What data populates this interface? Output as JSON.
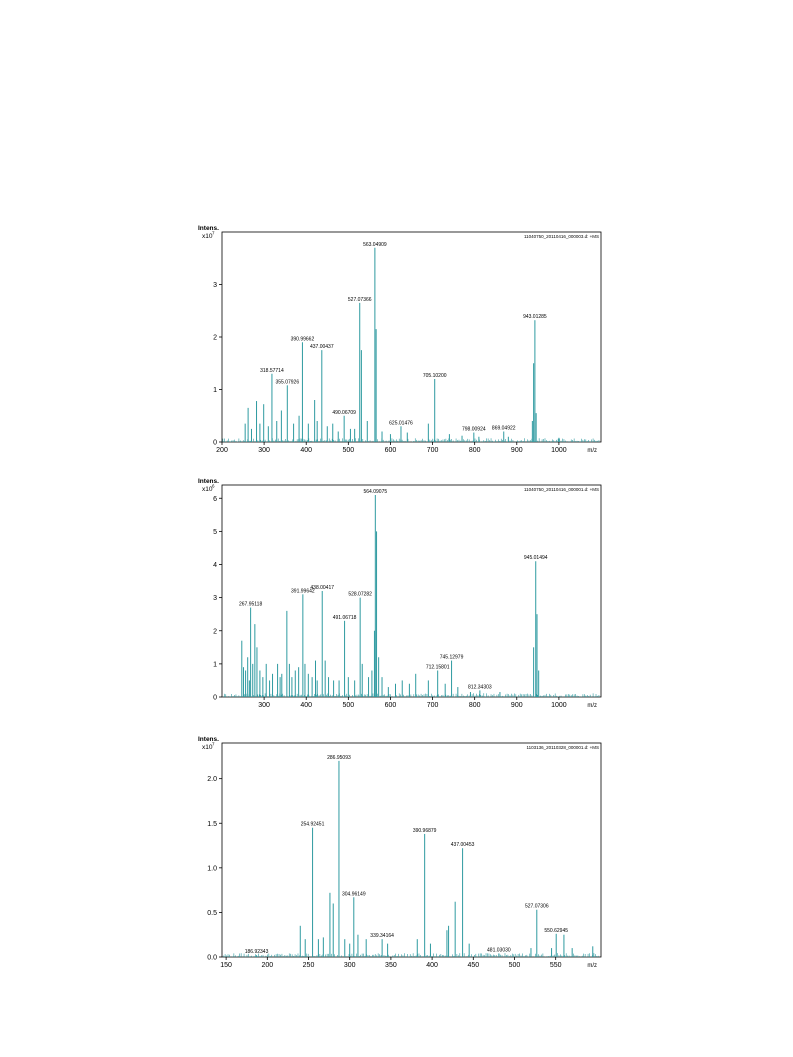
{
  "colors": {
    "trace": "#2e9aa0",
    "axis": "#000000"
  },
  "chart_data": [
    {
      "type": "line",
      "file_label": "11040750_20110416_000003.d: +MS",
      "ylabel_line1": "Intens.",
      "ylabel_line2": "x10",
      "ylabel_exp": "7",
      "xlabel": "m/z",
      "xlim": [
        200,
        1100
      ],
      "ylim": [
        0,
        4.0
      ],
      "xticks": [
        200,
        300,
        400,
        500,
        600,
        700,
        800,
        900,
        1000
      ],
      "yticks": [
        0,
        1,
        2,
        3
      ],
      "ytick_labels": [
        "0",
        "1",
        "2",
        "3"
      ],
      "peaks": [
        {
          "x": 255,
          "y": 0.35
        },
        {
          "x": 262,
          "y": 0.65
        },
        {
          "x": 270,
          "y": 0.25
        },
        {
          "x": 282,
          "y": 0.78
        },
        {
          "x": 290,
          "y": 0.35
        },
        {
          "x": 299,
          "y": 0.72
        },
        {
          "x": 310,
          "y": 0.3
        },
        {
          "x": 318.57714,
          "y": 1.3
        },
        {
          "x": 330,
          "y": 0.4
        },
        {
          "x": 341,
          "y": 0.6
        },
        {
          "x": 355.07926,
          "y": 1.08
        },
        {
          "x": 370,
          "y": 0.35
        },
        {
          "x": 383,
          "y": 0.5
        },
        {
          "x": 390.99662,
          "y": 1.9
        },
        {
          "x": 405,
          "y": 0.35
        },
        {
          "x": 420,
          "y": 0.8
        },
        {
          "x": 426,
          "y": 0.4
        },
        {
          "x": 437.00437,
          "y": 1.75
        },
        {
          "x": 450,
          "y": 0.3
        },
        {
          "x": 463,
          "y": 0.35
        },
        {
          "x": 476,
          "y": 0.2
        },
        {
          "x": 490.06709,
          "y": 0.5
        },
        {
          "x": 505,
          "y": 0.25
        },
        {
          "x": 515,
          "y": 0.25
        },
        {
          "x": 527.07366,
          "y": 2.65
        },
        {
          "x": 531,
          "y": 1.75
        },
        {
          "x": 545,
          "y": 0.4
        },
        {
          "x": 563.04909,
          "y": 3.7
        },
        {
          "x": 566,
          "y": 2.15
        },
        {
          "x": 580,
          "y": 0.2
        },
        {
          "x": 600,
          "y": 0.15
        },
        {
          "x": 625.01476,
          "y": 0.3
        },
        {
          "x": 640,
          "y": 0.18
        },
        {
          "x": 690,
          "y": 0.35
        },
        {
          "x": 705.102,
          "y": 1.2
        },
        {
          "x": 740,
          "y": 0.15
        },
        {
          "x": 770,
          "y": 0.12
        },
        {
          "x": 798.00924,
          "y": 0.18
        },
        {
          "x": 810,
          "y": 0.1
        },
        {
          "x": 869.04922,
          "y": 0.2
        },
        {
          "x": 880,
          "y": 0.1
        },
        {
          "x": 937,
          "y": 0.4
        },
        {
          "x": 940,
          "y": 1.5
        },
        {
          "x": 943.01285,
          "y": 2.32
        },
        {
          "x": 946,
          "y": 0.55
        },
        {
          "x": 1000,
          "y": 0.08
        }
      ],
      "labels": [
        {
          "x": 318.57714,
          "y": 1.3,
          "text": "318.57714"
        },
        {
          "x": 355.07926,
          "y": 1.08,
          "text": "355.07926"
        },
        {
          "x": 390.99662,
          "y": 1.9,
          "text": "390.99662"
        },
        {
          "x": 437.00437,
          "y": 1.75,
          "text": "437.00437"
        },
        {
          "x": 490.06709,
          "y": 0.5,
          "text": "490.06709"
        },
        {
          "x": 527.07366,
          "y": 2.65,
          "text": "527.07366"
        },
        {
          "x": 563.04909,
          "y": 3.7,
          "text": "563.04909"
        },
        {
          "x": 625.01476,
          "y": 0.3,
          "text": "625.01476"
        },
        {
          "x": 705.102,
          "y": 1.2,
          "text": "705.10200"
        },
        {
          "x": 798.00924,
          "y": 0.18,
          "text": "798.00924"
        },
        {
          "x": 869.04922,
          "y": 0.2,
          "text": "869.04922"
        },
        {
          "x": 943.01285,
          "y": 2.32,
          "text": "943.01285"
        }
      ]
    },
    {
      "type": "line",
      "file_label": "11040750_20110416_000001.d: +MS",
      "ylabel_line1": "Intens.",
      "ylabel_line2": "x10",
      "ylabel_exp": "6",
      "xlabel": "m/z",
      "xlim": [
        200,
        1100
      ],
      "ylim": [
        0,
        6.4
      ],
      "xticks": [
        300,
        400,
        500,
        600,
        700,
        800,
        900,
        1000
      ],
      "yticks": [
        0,
        1,
        2,
        3,
        4,
        5,
        6
      ],
      "ytick_labels": [
        "0",
        "1",
        "2",
        "3",
        "4",
        "5",
        "6"
      ],
      "peaks": [
        {
          "x": 247,
          "y": 1.7
        },
        {
          "x": 251,
          "y": 0.9
        },
        {
          "x": 256,
          "y": 0.8
        },
        {
          "x": 261,
          "y": 1.2
        },
        {
          "x": 265,
          "y": 0.5
        },
        {
          "x": 267.95118,
          "y": 2.7
        },
        {
          "x": 273,
          "y": 1.0
        },
        {
          "x": 278,
          "y": 2.2
        },
        {
          "x": 283,
          "y": 1.5
        },
        {
          "x": 290,
          "y": 0.8
        },
        {
          "x": 297,
          "y": 0.6
        },
        {
          "x": 305,
          "y": 1.0
        },
        {
          "x": 313,
          "y": 0.5
        },
        {
          "x": 320,
          "y": 0.7
        },
        {
          "x": 332,
          "y": 1.0
        },
        {
          "x": 338,
          "y": 0.6
        },
        {
          "x": 342,
          "y": 0.7
        },
        {
          "x": 354,
          "y": 2.6
        },
        {
          "x": 360,
          "y": 1.0
        },
        {
          "x": 366,
          "y": 0.6
        },
        {
          "x": 374,
          "y": 0.8
        },
        {
          "x": 382,
          "y": 0.9
        },
        {
          "x": 391.99642,
          "y": 3.1
        },
        {
          "x": 397,
          "y": 1.0
        },
        {
          "x": 405,
          "y": 0.7
        },
        {
          "x": 414,
          "y": 0.6
        },
        {
          "x": 422,
          "y": 1.1
        },
        {
          "x": 426,
          "y": 0.5
        },
        {
          "x": 438.00417,
          "y": 3.2
        },
        {
          "x": 445,
          "y": 1.1
        },
        {
          "x": 453,
          "y": 0.6
        },
        {
          "x": 465,
          "y": 0.5
        },
        {
          "x": 478,
          "y": 0.5
        },
        {
          "x": 491.06718,
          "y": 2.3
        },
        {
          "x": 500,
          "y": 0.6
        },
        {
          "x": 515,
          "y": 0.5
        },
        {
          "x": 528.07282,
          "y": 3.0
        },
        {
          "x": 533,
          "y": 1.0
        },
        {
          "x": 548,
          "y": 0.6
        },
        {
          "x": 556,
          "y": 0.8
        },
        {
          "x": 562,
          "y": 2.0
        },
        {
          "x": 564.09075,
          "y": 6.1
        },
        {
          "x": 567,
          "y": 5.0
        },
        {
          "x": 572,
          "y": 1.2
        },
        {
          "x": 580,
          "y": 0.6
        },
        {
          "x": 595,
          "y": 0.3
        },
        {
          "x": 612,
          "y": 0.4
        },
        {
          "x": 628,
          "y": 0.5
        },
        {
          "x": 645,
          "y": 0.4
        },
        {
          "x": 660,
          "y": 0.7
        },
        {
          "x": 690,
          "y": 0.5
        },
        {
          "x": 712.15801,
          "y": 0.8
        },
        {
          "x": 730,
          "y": 0.4
        },
        {
          "x": 745.12979,
          "y": 1.1
        },
        {
          "x": 760,
          "y": 0.3
        },
        {
          "x": 790,
          "y": 0.15
        },
        {
          "x": 812.34303,
          "y": 0.2
        },
        {
          "x": 860,
          "y": 0.15
        },
        {
          "x": 940,
          "y": 1.5
        },
        {
          "x": 945.01494,
          "y": 4.1
        },
        {
          "x": 948,
          "y": 2.5
        },
        {
          "x": 952,
          "y": 0.8
        }
      ],
      "labels": [
        {
          "x": 267.95118,
          "y": 2.7,
          "text": "267.95118"
        },
        {
          "x": 391.99642,
          "y": 3.1,
          "text": "391.99642"
        },
        {
          "x": 438.00417,
          "y": 3.2,
          "text": "438.00417"
        },
        {
          "x": 491.06718,
          "y": 2.3,
          "text": "491.06718"
        },
        {
          "x": 528.07282,
          "y": 3.0,
          "text": "528.07282"
        },
        {
          "x": 564.09075,
          "y": 6.1,
          "text": "564.09075"
        },
        {
          "x": 712.15801,
          "y": 0.8,
          "text": "712.15801"
        },
        {
          "x": 745.12979,
          "y": 1.1,
          "text": "745.12979"
        },
        {
          "x": 812.34303,
          "y": 0.2,
          "text": "812.34303"
        },
        {
          "x": 945.01494,
          "y": 4.1,
          "text": "945.01494"
        }
      ]
    },
    {
      "type": "line",
      "file_label": "1103136_20110328_000001.d: +MS",
      "ylabel_line1": "Intens.",
      "ylabel_line2": "x10",
      "ylabel_exp": "7",
      "xlabel": "m/z",
      "xlim": [
        145,
        605
      ],
      "ylim": [
        0,
        2.4
      ],
      "xticks": [
        150,
        200,
        250,
        300,
        350,
        400,
        450,
        500,
        550
      ],
      "yticks": [
        0,
        0.5,
        1.0,
        1.5,
        2.0
      ],
      "ytick_labels": [
        "0.0",
        "0.5",
        "1.0",
        "1.5",
        "2.0"
      ],
      "peaks": [
        {
          "x": 186.92343,
          "y": 0.02
        },
        {
          "x": 240,
          "y": 0.35
        },
        {
          "x": 246,
          "y": 0.2
        },
        {
          "x": 254.92451,
          "y": 1.45
        },
        {
          "x": 262,
          "y": 0.2
        },
        {
          "x": 268,
          "y": 0.22
        },
        {
          "x": 276,
          "y": 0.72
        },
        {
          "x": 280,
          "y": 0.6
        },
        {
          "x": 286.95093,
          "y": 2.2
        },
        {
          "x": 294,
          "y": 0.2
        },
        {
          "x": 300,
          "y": 0.15
        },
        {
          "x": 304.96149,
          "y": 0.67
        },
        {
          "x": 310,
          "y": 0.25
        },
        {
          "x": 320,
          "y": 0.2
        },
        {
          "x": 339.34164,
          "y": 0.2
        },
        {
          "x": 346,
          "y": 0.15
        },
        {
          "x": 382,
          "y": 0.2
        },
        {
          "x": 390.96879,
          "y": 1.38
        },
        {
          "x": 398,
          "y": 0.15
        },
        {
          "x": 418,
          "y": 0.3
        },
        {
          "x": 420,
          "y": 0.35
        },
        {
          "x": 428,
          "y": 0.62
        },
        {
          "x": 437.00453,
          "y": 1.22
        },
        {
          "x": 445,
          "y": 0.15
        },
        {
          "x": 481.0303,
          "y": 0.04
        },
        {
          "x": 520,
          "y": 0.1
        },
        {
          "x": 527.07306,
          "y": 0.53
        },
        {
          "x": 545,
          "y": 0.1
        },
        {
          "x": 550.62945,
          "y": 0.26
        },
        {
          "x": 560,
          "y": 0.25
        },
        {
          "x": 570,
          "y": 0.1
        },
        {
          "x": 595,
          "y": 0.12
        }
      ],
      "labels": [
        {
          "x": 186.92343,
          "y": 0.02,
          "text": "186.92343"
        },
        {
          "x": 254.92451,
          "y": 1.45,
          "text": "254.92451"
        },
        {
          "x": 286.95093,
          "y": 2.2,
          "text": "286.95093"
        },
        {
          "x": 304.96149,
          "y": 0.67,
          "text": "304.96149"
        },
        {
          "x": 339.34164,
          "y": 0.2,
          "text": "339.34164"
        },
        {
          "x": 390.96879,
          "y": 1.38,
          "text": "390.96879"
        },
        {
          "x": 437.00453,
          "y": 1.22,
          "text": "437.00453"
        },
        {
          "x": 481.0303,
          "y": 0.04,
          "text": "481.03030"
        },
        {
          "x": 527.07306,
          "y": 0.53,
          "text": "527.07306"
        },
        {
          "x": 550.62945,
          "y": 0.26,
          "text": "550.62945"
        }
      ]
    }
  ]
}
